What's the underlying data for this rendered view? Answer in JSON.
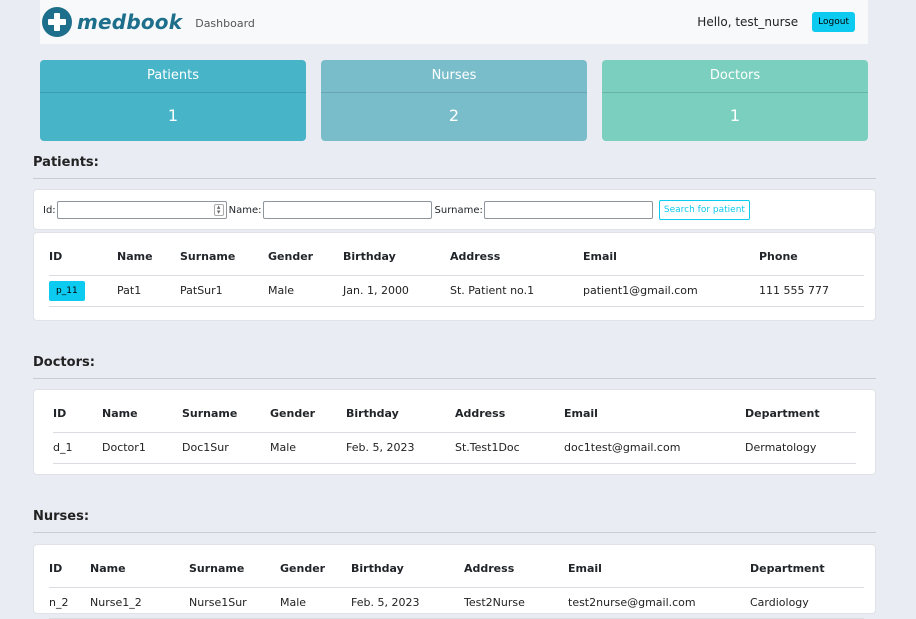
{
  "navbar": {
    "brand": "medbook",
    "nav_link": "Dashboard",
    "greeting": "Hello, test_nurse",
    "logout": "Logout"
  },
  "stats": [
    {
      "label": "Patients",
      "value": "1",
      "color": "#48b4c8"
    },
    {
      "label": "Nurses",
      "value": "2",
      "color": "#79bdcb"
    },
    {
      "label": "Doctors",
      "value": "1",
      "color": "#7acfbe"
    }
  ],
  "patients": {
    "title": "Patients:",
    "search": {
      "id_label": "Id:",
      "name_label": "Name:",
      "surname_label": "Surname:",
      "button": "Search for patient"
    },
    "columns": [
      "ID",
      "Name",
      "Surname",
      "Gender",
      "Birthday",
      "Address",
      "Email",
      "Phone"
    ],
    "rows": [
      {
        "id": "p_11",
        "name": "Pat1",
        "surname": "PatSur1",
        "gender": "Male",
        "birthday": "Jan. 1, 2000",
        "address": "St. Patient no.1",
        "email": "patient1@gmail.com",
        "phone": "111 555 777"
      }
    ]
  },
  "doctors": {
    "title": "Doctors:",
    "columns": [
      "ID",
      "Name",
      "Surname",
      "Gender",
      "Birthday",
      "Address",
      "Email",
      "Department"
    ],
    "rows": [
      {
        "id": "d_1",
        "name": "Doctor1",
        "surname": "Doc1Sur",
        "gender": "Male",
        "birthday": "Feb. 5, 2023",
        "address": "St.Test1Doc",
        "email": "doc1test@gmail.com",
        "department": "Dermatology"
      }
    ]
  },
  "nurses": {
    "title": "Nurses:",
    "columns": [
      "ID",
      "Name",
      "Surname",
      "Gender",
      "Birthday",
      "Address",
      "Email",
      "Department"
    ],
    "rows": [
      {
        "id": "n_2",
        "name": "Nurse1_2",
        "surname": "Nurse1Sur",
        "gender": "Male",
        "birthday": "Feb. 5, 2023",
        "address": "Test2Nurse",
        "email": "test2nurse@gmail.com",
        "department": "Cardiology"
      }
    ]
  }
}
